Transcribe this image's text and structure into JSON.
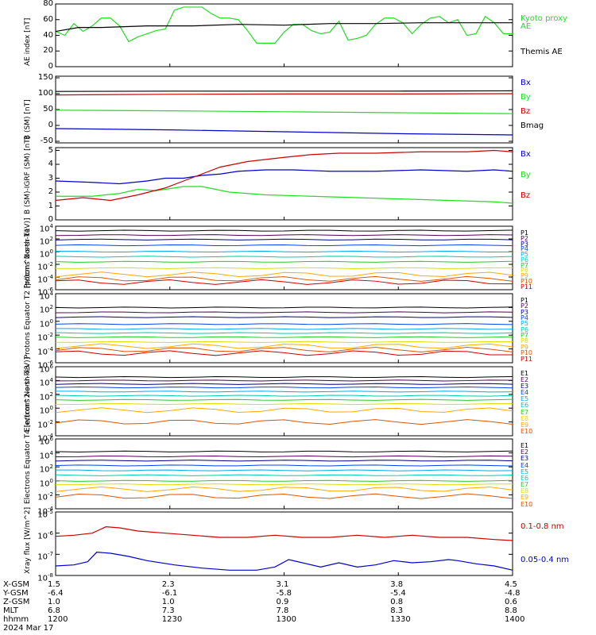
{
  "colors": {
    "black": "#000000",
    "green": "#22dd22",
    "red": "#cc0000",
    "blue": "#0000cc",
    "ladder": [
      "#000000",
      "#550055",
      "#000088",
      "#0044ee",
      "#00aaee",
      "#00ccaa",
      "#22cc22",
      "#dddd00",
      "#ffaa00",
      "#dd5500",
      "#cc0000"
    ]
  },
  "chart_data": [
    {
      "type": "line",
      "ylabel": "AE index [nT]",
      "ylim": [
        0,
        80
      ],
      "yticks": [
        "80",
        "60",
        "40",
        "20",
        "0"
      ],
      "x": [
        "1200",
        "1230",
        "1300",
        "1330",
        "1400"
      ],
      "legend": [
        "Kyoto proxy AE",
        "Themis AE"
      ],
      "series": [
        {
          "name": "Kyoto proxy AE",
          "color": "green",
          "values": [
            [
              0,
              45
            ],
            [
              2,
              40
            ],
            [
              4,
              55
            ],
            [
              6,
              45
            ],
            [
              8,
              52
            ],
            [
              10,
              62
            ],
            [
              12,
              62
            ],
            [
              14,
              52
            ],
            [
              16,
              32
            ],
            [
              18,
              38
            ],
            [
              20,
              42
            ],
            [
              22,
              46
            ],
            [
              24,
              48
            ],
            [
              26,
              72
            ],
            [
              28,
              76
            ],
            [
              30,
              76
            ],
            [
              32,
              76
            ],
            [
              34,
              68
            ],
            [
              36,
              62
            ],
            [
              38,
              62
            ],
            [
              40,
              60
            ],
            [
              42,
              46
            ],
            [
              44,
              30
            ],
            [
              46,
              30
            ],
            [
              48,
              30
            ],
            [
              50,
              44
            ],
            [
              52,
              54
            ],
            [
              54,
              54
            ],
            [
              56,
              46
            ],
            [
              58,
              42
            ],
            [
              60,
              44
            ],
            [
              62,
              58
            ],
            [
              64,
              34
            ],
            [
              66,
              36
            ],
            [
              68,
              40
            ],
            [
              70,
              54
            ],
            [
              72,
              62
            ],
            [
              74,
              62
            ],
            [
              76,
              56
            ],
            [
              78,
              42
            ],
            [
              80,
              54
            ],
            [
              82,
              62
            ],
            [
              84,
              64
            ],
            [
              86,
              56
            ],
            [
              88,
              60
            ],
            [
              90,
              40
            ],
            [
              92,
              42
            ],
            [
              94,
              64
            ],
            [
              96,
              56
            ],
            [
              98,
              42
            ],
            [
              100,
              42
            ]
          ]
        },
        {
          "name": "Themis AE",
          "color": "black",
          "values": [
            [
              0,
              45
            ],
            [
              5,
              50
            ],
            [
              10,
              50
            ],
            [
              20,
              52
            ],
            [
              30,
              52
            ],
            [
              40,
              54
            ],
            [
              50,
              53
            ],
            [
              60,
              55
            ],
            [
              70,
              55
            ],
            [
              80,
              56
            ],
            [
              90,
              56
            ],
            [
              100,
              56
            ]
          ]
        }
      ]
    },
    {
      "type": "line",
      "ylabel": "B (SM) [nT]",
      "ylim": [
        -55,
        155
      ],
      "yticks": [
        "150",
        "100",
        "50",
        "0",
        "-50"
      ],
      "legend": [
        "Bx",
        "By",
        "Bz",
        "Bmag"
      ],
      "series": [
        {
          "name": "Bx",
          "color": "blue",
          "values": [
            [
              0,
              -10
            ],
            [
              25,
              -14
            ],
            [
              50,
              -20
            ],
            [
              75,
              -26
            ],
            [
              100,
              -30
            ]
          ]
        },
        {
          "name": "By",
          "color": "green",
          "values": [
            [
              0,
              48
            ],
            [
              25,
              46
            ],
            [
              50,
              43
            ],
            [
              75,
              40
            ],
            [
              100,
              37
            ]
          ]
        },
        {
          "name": "Bz",
          "color": "red",
          "values": [
            [
              0,
              96
            ],
            [
              25,
              98
            ],
            [
              50,
              99
            ],
            [
              75,
              99
            ],
            [
              100,
              100
            ]
          ]
        },
        {
          "name": "Bmag",
          "color": "black",
          "values": [
            [
              0,
              107
            ],
            [
              25,
              108
            ],
            [
              50,
              108
            ],
            [
              75,
              108
            ],
            [
              100,
              109
            ]
          ]
        }
      ]
    },
    {
      "type": "line",
      "ylabel": "B (SM)-IGRF (SM) [nT]",
      "ylim": [
        0,
        5.2
      ],
      "yticks": [
        "5",
        "4",
        "3",
        "2",
        "1",
        "0"
      ],
      "legend": [
        "Bx",
        "By",
        "Bz"
      ],
      "series": [
        {
          "name": "Bx",
          "color": "blue",
          "values": [
            [
              0,
              2.8
            ],
            [
              8,
              2.7
            ],
            [
              14,
              2.6
            ],
            [
              20,
              2.8
            ],
            [
              24,
              3.0
            ],
            [
              28,
              3.0
            ],
            [
              32,
              3.2
            ],
            [
              36,
              3.3
            ],
            [
              40,
              3.5
            ],
            [
              46,
              3.6
            ],
            [
              52,
              3.6
            ],
            [
              60,
              3.5
            ],
            [
              70,
              3.5
            ],
            [
              80,
              3.6
            ],
            [
              90,
              3.5
            ],
            [
              96,
              3.6
            ],
            [
              100,
              3.5
            ]
          ]
        },
        {
          "name": "By",
          "color": "green",
          "values": [
            [
              0,
              1.7
            ],
            [
              8,
              1.7
            ],
            [
              14,
              1.9
            ],
            [
              18,
              2.2
            ],
            [
              22,
              2.1
            ],
            [
              28,
              2.4
            ],
            [
              32,
              2.4
            ],
            [
              38,
              2.0
            ],
            [
              46,
              1.8
            ],
            [
              56,
              1.7
            ],
            [
              66,
              1.6
            ],
            [
              76,
              1.5
            ],
            [
              86,
              1.4
            ],
            [
              96,
              1.3
            ],
            [
              100,
              1.2
            ]
          ]
        },
        {
          "name": "Bz",
          "color": "red",
          "values": [
            [
              0,
              1.4
            ],
            [
              6,
              1.6
            ],
            [
              12,
              1.4
            ],
            [
              18,
              1.8
            ],
            [
              24,
              2.3
            ],
            [
              28,
              2.8
            ],
            [
              32,
              3.3
            ],
            [
              36,
              3.8
            ],
            [
              42,
              4.2
            ],
            [
              50,
              4.5
            ],
            [
              56,
              4.7
            ],
            [
              62,
              4.8
            ],
            [
              70,
              4.8
            ],
            [
              80,
              4.9
            ],
            [
              90,
              4.9
            ],
            [
              96,
              5.0
            ],
            [
              100,
              4.9
            ]
          ]
        }
      ]
    },
    {
      "type": "line",
      "ylabel": "Protons North T1",
      "log": true,
      "ylim": [
        -6,
        4
      ],
      "yticks": [
        "10^4",
        "10^2",
        "10^0",
        "10^-2",
        "10^-4",
        "10^-6"
      ],
      "legend": [
        "P1",
        "P2",
        "P3",
        "P4",
        "P5",
        "P6",
        "P7",
        "P8",
        "P9",
        "P10",
        "P11"
      ],
      "levels": [
        3.3,
        2.6,
        1.9,
        1.0,
        0.0,
        -0.8,
        -1.6,
        -2.6,
        -3.6,
        -4.3,
        -4.8
      ]
    },
    {
      "type": "line",
      "ylabel": "Protons Equator T2 [p/(cm^2-s-sr-keV)]",
      "log": true,
      "ylim": [
        -6,
        4
      ],
      "yticks": [
        "10^4",
        "10^2",
        "10^0",
        "10^-2",
        "10^-4",
        "10^-6"
      ],
      "legend": [
        "P1",
        "P2",
        "P3",
        "P4",
        "P5",
        "P6",
        "P7",
        "P8",
        "P9",
        "P10",
        "P11"
      ],
      "levels": [
        2.0,
        1.3,
        0.6,
        -0.4,
        -1.1,
        -1.7,
        -2.3,
        -3.0,
        -3.6,
        -4.1,
        -4.6
      ]
    },
    {
      "type": "line",
      "ylabel": "Electrons North T3",
      "log": true,
      "ylim": [
        -4,
        6
      ],
      "yticks": [
        "10^6",
        "10^4",
        "10^2",
        "10^0",
        "10^-2",
        "10^-4"
      ],
      "legend": [
        "E1",
        "E2",
        "E3",
        "E4",
        "E5",
        "E6",
        "E7",
        "E8",
        "E9",
        "E10"
      ],
      "levels": [
        4.5,
        4.0,
        3.5,
        3.0,
        2.4,
        1.8,
        1.2,
        0.6,
        -0.3,
        -2.0
      ]
    },
    {
      "type": "line",
      "ylabel": "Electrons Equator T4 [e/(cm^2-s-sr-keV)]",
      "log": true,
      "ylim": [
        -4,
        6
      ],
      "yticks": [
        "10^6",
        "10^4",
        "10^2",
        "10^0",
        "10^-2",
        "10^-4"
      ],
      "legend": [
        "E1",
        "E2",
        "E3",
        "E4",
        "E5",
        "E6",
        "E7",
        "E8",
        "E9",
        "E10"
      ],
      "levels": [
        4.2,
        3.5,
        2.9,
        2.2,
        1.5,
        0.8,
        0.0,
        -0.5,
        -1.2,
        -2.2
      ]
    },
    {
      "type": "line",
      "ylabel": "Xray flux [W/m^2]",
      "log": true,
      "ylim": [
        -8,
        -5
      ],
      "yticks": [
        "10^-5",
        "10^-6",
        "10^-7",
        "10^-8"
      ],
      "legend": [
        "0.1-0.8 nm",
        "0.05-0.4 nm"
      ],
      "series": [
        {
          "name": "0.1-0.8 nm",
          "color": "red",
          "values": [
            [
              0,
              -6.15
            ],
            [
              4,
              -6.1
            ],
            [
              8,
              -6.0
            ],
            [
              11,
              -5.7
            ],
            [
              14,
              -5.75
            ],
            [
              18,
              -5.9
            ],
            [
              24,
              -6.0
            ],
            [
              30,
              -6.1
            ],
            [
              36,
              -6.2
            ],
            [
              42,
              -6.2
            ],
            [
              48,
              -6.1
            ],
            [
              54,
              -6.2
            ],
            [
              60,
              -6.2
            ],
            [
              66,
              -6.1
            ],
            [
              72,
              -6.2
            ],
            [
              78,
              -6.1
            ],
            [
              84,
              -6.2
            ],
            [
              90,
              -6.2
            ],
            [
              96,
              -6.3
            ],
            [
              100,
              -6.35
            ]
          ]
        },
        {
          "name": "0.05-0.4 nm",
          "color": "blue",
          "values": [
            [
              0,
              -7.55
            ],
            [
              4,
              -7.5
            ],
            [
              7,
              -7.35
            ],
            [
              9,
              -6.9
            ],
            [
              12,
              -6.95
            ],
            [
              16,
              -7.1
            ],
            [
              20,
              -7.3
            ],
            [
              26,
              -7.5
            ],
            [
              32,
              -7.65
            ],
            [
              38,
              -7.75
            ],
            [
              44,
              -7.75
            ],
            [
              48,
              -7.6
            ],
            [
              51,
              -7.25
            ],
            [
              54,
              -7.4
            ],
            [
              58,
              -7.6
            ],
            [
              62,
              -7.4
            ],
            [
              66,
              -7.6
            ],
            [
              70,
              -7.5
            ],
            [
              74,
              -7.3
            ],
            [
              78,
              -7.4
            ],
            [
              82,
              -7.35
            ],
            [
              86,
              -7.25
            ],
            [
              88,
              -7.3
            ],
            [
              92,
              -7.45
            ],
            [
              96,
              -7.55
            ],
            [
              100,
              -7.75
            ]
          ]
        }
      ]
    }
  ],
  "xaxis": {
    "rows": [
      {
        "label": "X-GSM",
        "values": [
          "1.5",
          "2.3",
          "3.1",
          "3.8",
          "4.5"
        ]
      },
      {
        "label": "Y-GSM",
        "values": [
          "-6.4",
          "-6.1",
          "-5.8",
          "-5.4",
          "-4.8"
        ]
      },
      {
        "label": "Z-GSM",
        "values": [
          "1.0",
          "1.0",
          "0.9",
          "0.8",
          "0.6"
        ]
      },
      {
        "label": "MLT",
        "values": [
          "6.8",
          "7.3",
          "7.8",
          "8.3",
          "8.8"
        ]
      },
      {
        "label": "hhmm",
        "values": [
          "1200",
          "1230",
          "1300",
          "1330",
          "1400"
        ]
      }
    ],
    "date": "2024 Mar 17"
  }
}
